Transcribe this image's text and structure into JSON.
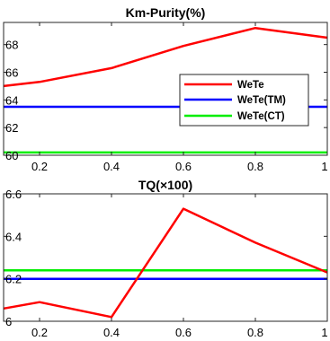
{
  "chart_data": [
    {
      "type": "line",
      "title": "Km-Purity(%)",
      "xlabel": "",
      "ylabel": "",
      "xlim": [
        0.1,
        1.0
      ],
      "ylim": [
        60,
        69.6
      ],
      "x_ticks": [
        0.2,
        0.4,
        0.6,
        0.8,
        1.0
      ],
      "x_tick_labels": [
        "0.2",
        "0.4",
        "0.6",
        "0.8",
        "1"
      ],
      "y_ticks": [
        60,
        62,
        64,
        66,
        68
      ],
      "y_tick_labels": [
        "60",
        "62",
        "64",
        "66",
        "68"
      ],
      "grid": false,
      "legend": "center-right",
      "series": [
        {
          "name": "WeTe",
          "color": "#ff0000",
          "x": [
            0.1,
            0.2,
            0.4,
            0.6,
            0.8,
            1.0
          ],
          "y": [
            65.0,
            65.3,
            66.3,
            67.9,
            69.2,
            68.5
          ]
        },
        {
          "name": "WeTe(TM)",
          "color": "#0000ff",
          "x": [
            0.1,
            1.0
          ],
          "y": [
            63.5,
            63.5
          ]
        },
        {
          "name": "WeTe(CT)",
          "color": "#00ee00",
          "x": [
            0.1,
            1.0
          ],
          "y": [
            60.2,
            60.2
          ]
        }
      ]
    },
    {
      "type": "line",
      "title": "TQ(×100)",
      "xlabel": "",
      "ylabel": "",
      "xlim": [
        0.1,
        1.0
      ],
      "ylim": [
        6.0,
        6.6
      ],
      "x_ticks": [
        0.2,
        0.4,
        0.6,
        0.8,
        1.0
      ],
      "x_tick_labels": [
        "0.2",
        "0.4",
        "0.6",
        "0.8",
        "1"
      ],
      "y_ticks": [
        6.0,
        6.2,
        6.4,
        6.6
      ],
      "y_tick_labels": [
        "6",
        "6.2",
        "6.4",
        "6.6"
      ],
      "grid": false,
      "legend": "none",
      "series": [
        {
          "name": "WeTe",
          "color": "#ff0000",
          "x": [
            0.1,
            0.2,
            0.4,
            0.6,
            0.8,
            1.0
          ],
          "y": [
            6.06,
            6.09,
            6.02,
            6.53,
            6.37,
            6.23
          ]
        },
        {
          "name": "WeTe(TM)",
          "color": "#0000ff",
          "x": [
            0.1,
            1.0
          ],
          "y": [
            6.2,
            6.2
          ]
        },
        {
          "name": "WeTe(CT)",
          "color": "#00ee00",
          "x": [
            0.1,
            1.0
          ],
          "y": [
            6.24,
            6.24
          ]
        }
      ]
    }
  ]
}
